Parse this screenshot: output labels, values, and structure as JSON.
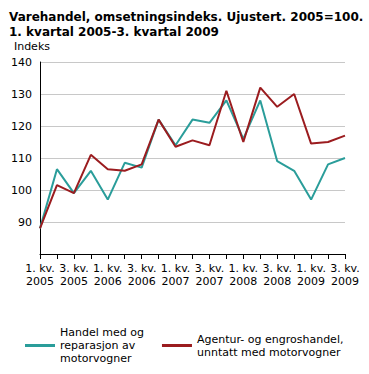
{
  "chart_data": {
    "type": "line",
    "title": "Varehandel, omsetningsindeks. Ujustert. 2005=100.\n1. kvartal 2005-3. kvartal 2009",
    "y_label": "Indeks",
    "categories": [
      "1. kv.\n2005",
      null,
      "3. kv.\n2005",
      null,
      "1. kv.\n2006",
      null,
      "3. kv.\n2006",
      null,
      "1. kv.\n2007",
      null,
      "3. kv.\n2007",
      null,
      "1. kv.\n2008",
      null,
      "3. kv.\n2008",
      null,
      "1. kv.\n2009",
      null,
      "3. kv.\n2009"
    ],
    "series": [
      {
        "name": "Handel med og\nreparasjon av\nmotorvogner",
        "color": "#2a9d9a",
        "values": [
          88,
          106.5,
          99,
          106,
          97,
          108.5,
          107,
          122,
          114,
          122,
          121,
          128,
          116,
          128,
          109,
          106,
          97,
          108,
          110
        ]
      },
      {
        "name": "Agentur- og engroshandel,\nunntatt med motorvogner",
        "color": "#9b1c1f",
        "values": [
          88,
          101.5,
          99,
          111,
          106.5,
          106,
          108,
          122,
          113.5,
          115.5,
          114,
          131,
          115,
          132,
          126,
          130,
          114.5,
          115,
          117
        ]
      }
    ],
    "ylim": [
      80,
      140
    ],
    "yticks": [
      90,
      100,
      110,
      120,
      130,
      140
    ],
    "grid": true,
    "legend": "bottom"
  }
}
